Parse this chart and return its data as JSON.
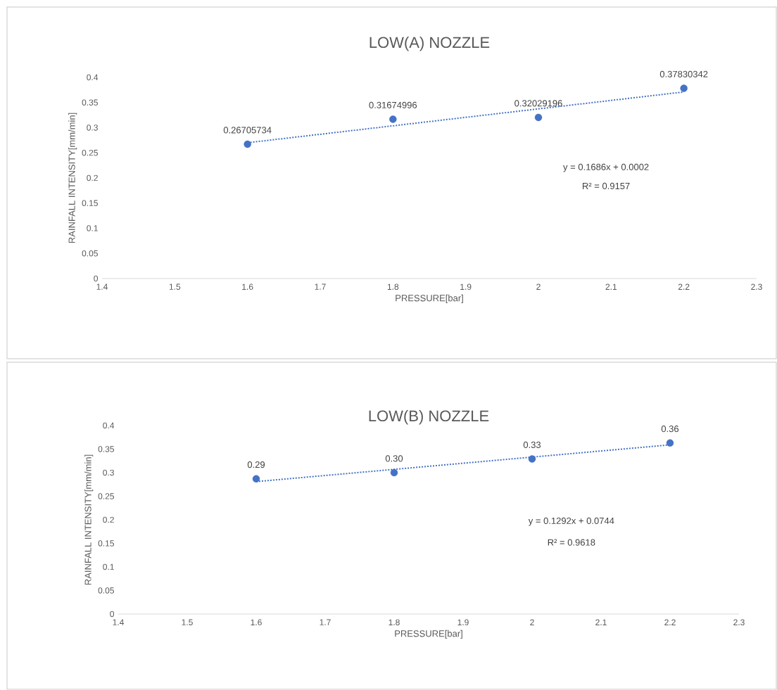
{
  "chart_data": [
    {
      "type": "scatter",
      "title": "LOW(A) NOZZLE",
      "xlabel": "PRESSURE[bar]",
      "ylabel": "RAINFALL INTENSITY[mm/min]",
      "xlim": [
        1.4,
        2.3
      ],
      "xticks": [
        1.4,
        1.5,
        1.6,
        1.7,
        1.8,
        1.9,
        2,
        2.1,
        2.2,
        2.3
      ],
      "ylim": [
        0,
        0.4
      ],
      "yticks": [
        0,
        0.05,
        0.1,
        0.15,
        0.2,
        0.25,
        0.3,
        0.35,
        0.4
      ],
      "annotations": [
        "y = 0.1686x + 0.0002",
        "R² = 0.9157"
      ],
      "series": [
        {
          "type": "scatter",
          "color": "#4472c4",
          "marker": "circle",
          "x": [
            1.6,
            1.8,
            2.0,
            2.2
          ],
          "values": [
            0.26705734,
            0.31674996,
            0.32029196,
            0.37830342
          ],
          "value_labels": [
            "0.26705734",
            "0.31674996",
            "0.32029196",
            "0.37830342"
          ]
        },
        {
          "type": "line",
          "color": "#4472c4",
          "marker": "none",
          "line_style": "dotted",
          "x": [
            1.6,
            2.2
          ],
          "values": [
            0.27,
            0.371
          ]
        }
      ]
    },
    {
      "type": "scatter",
      "title": "LOW(B) NOZZLE",
      "xlabel": "PRESSURE[bar]",
      "ylabel": "RAINFALL INTENSITY[mm/min]",
      "xlim": [
        1.4,
        2.3
      ],
      "xticks": [
        1.4,
        1.5,
        1.6,
        1.7,
        1.8,
        1.9,
        2,
        2.1,
        2.2,
        2.3
      ],
      "ylim": [
        0,
        0.4
      ],
      "yticks": [
        0,
        0.05,
        0.1,
        0.15,
        0.2,
        0.25,
        0.3,
        0.35,
        0.4
      ],
      "annotations": [
        "y = 0.1292x + 0.0744",
        "R² = 0.9618"
      ],
      "series": [
        {
          "type": "scatter",
          "color": "#4472c4",
          "marker": "circle",
          "x": [
            1.6,
            1.8,
            2.0,
            2.2
          ],
          "values": [
            0.287,
            0.3,
            0.329,
            0.363
          ],
          "value_labels": [
            "0.29",
            "0.30",
            "0.33",
            "0.36"
          ]
        },
        {
          "type": "line",
          "color": "#4472c4",
          "marker": "none",
          "line_style": "dotted",
          "x": [
            1.6,
            2.2
          ],
          "values": [
            0.281,
            0.359
          ]
        }
      ]
    }
  ]
}
